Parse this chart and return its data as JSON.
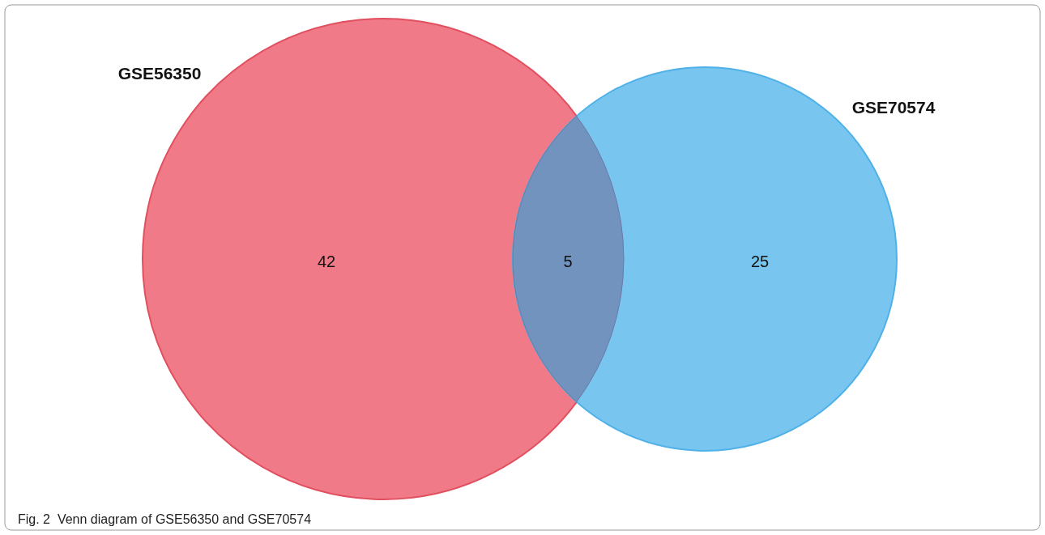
{
  "chart_data": {
    "type": "other",
    "categories": [
      "GSE56350",
      null,
      "GSE70574"
    ],
    "values": [
      42,
      5,
      25
    ],
    "colors": [
      "#f07a88",
      "#7393bf",
      "#78c6ef"
    ],
    "data_labels": true,
    "annotations": [
      "Fig. 2  Venn diagram of GSE56350 and GSE70574"
    ]
  }
}
